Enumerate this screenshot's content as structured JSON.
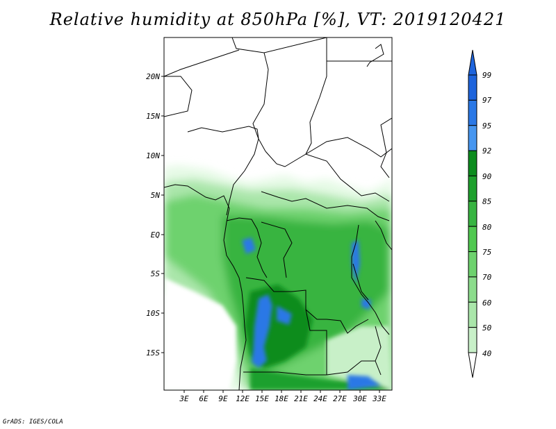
{
  "title": "Relative humidity at 850hPa [%], VT: 2019120421",
  "credit": "GrADS: IGES/COLA",
  "map": {
    "lat_labels": [
      "20N",
      "15N",
      "10N",
      "5N",
      "EQ",
      "5S",
      "10S",
      "15S"
    ],
    "lon_labels": [
      "3E",
      "6E",
      "9E",
      "12E",
      "15E",
      "18E",
      "21E",
      "24E",
      "27E",
      "30E",
      "33E"
    ]
  },
  "colorbar": {
    "labels": [
      "99",
      "97",
      "95",
      "92",
      "90",
      "85",
      "80",
      "75",
      "70",
      "60",
      "50",
      "40"
    ],
    "colors": [
      "#1E64DC",
      "#2A78E6",
      "#4696F0",
      "#0C8C1E",
      "#1EA02D",
      "#37B441",
      "#50C850",
      "#6ED26E",
      "#8CDC8C",
      "#AAE6AA",
      "#C8F0C8",
      "#E6FAE6"
    ]
  }
}
